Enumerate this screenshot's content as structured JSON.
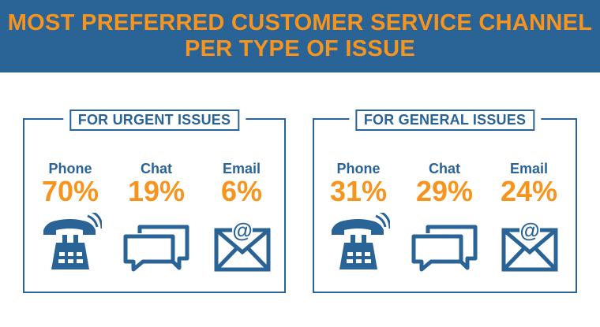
{
  "header": {
    "title_line1": "MOST PREFERRED CUSTOMER SERVICE CHANNEL",
    "title_line2": "PER TYPE OF ISSUE"
  },
  "colors": {
    "brand_blue": "#2a6496",
    "accent_orange": "#f7941d"
  },
  "chart_data": [
    {
      "type": "table",
      "title": "FOR URGENT ISSUES",
      "categories": [
        "Phone",
        "Chat",
        "Email"
      ],
      "values": [
        70,
        19,
        6
      ],
      "value_labels": [
        "70%",
        "19%",
        "6%"
      ],
      "icons": [
        "phone-icon",
        "chat-icon",
        "email-icon"
      ]
    },
    {
      "type": "table",
      "title": "FOR GENERAL ISSUES",
      "categories": [
        "Phone",
        "Chat",
        "Email"
      ],
      "values": [
        31,
        29,
        24
      ],
      "value_labels": [
        "31%",
        "29%",
        "24%"
      ],
      "icons": [
        "phone-icon",
        "chat-icon",
        "email-icon"
      ]
    }
  ]
}
